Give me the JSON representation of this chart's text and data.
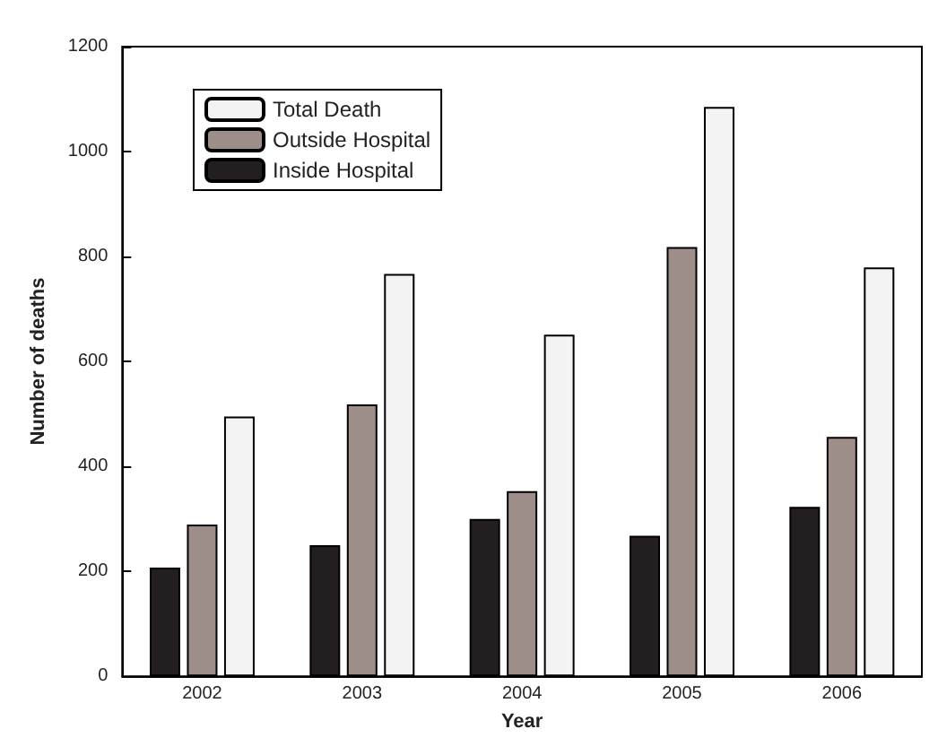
{
  "chart_data": {
    "type": "bar",
    "xlabel": "Year",
    "ylabel": "Number of deaths",
    "categories": [
      "2002",
      "2003",
      "2004",
      "2005",
      "2006"
    ],
    "series": [
      {
        "name": "Inside Hospital",
        "color": "#231f20",
        "values": [
          207,
          250,
          300,
          268,
          323
        ]
      },
      {
        "name": "Outside Hospital",
        "color": "#9e8e8a",
        "values": [
          289,
          518,
          353,
          818,
          456
        ]
      },
      {
        "name": "Total Death",
        "color": "#f2f3f2",
        "values": [
          495,
          767,
          651,
          1085,
          779
        ]
      }
    ],
    "ylim": [
      0,
      1200
    ],
    "yticks": [
      0,
      200,
      400,
      600,
      800,
      1000,
      1200
    ],
    "grid": false,
    "legend": "top left"
  }
}
